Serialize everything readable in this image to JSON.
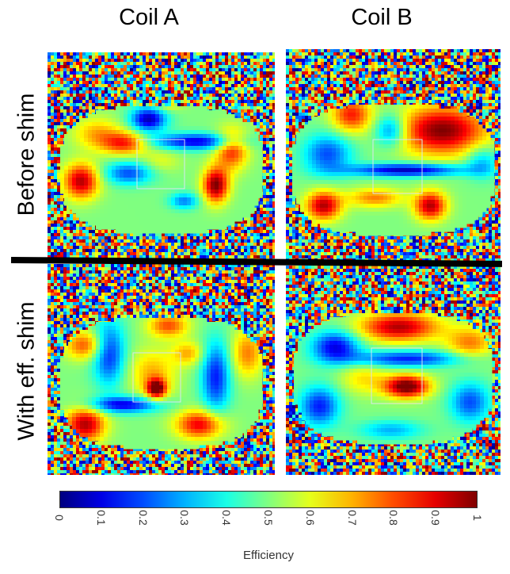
{
  "columns": [
    "Coil A",
    "Coil B"
  ],
  "rows": [
    "Before shim",
    "With eff. shim"
  ],
  "colorbar": {
    "label": "Efficiency",
    "ticks": [
      "0",
      "0.1",
      "0.2",
      "0.3",
      "0.4",
      "0.5",
      "0.6",
      "0.7",
      "0.8",
      "0.9",
      "1"
    ],
    "range": [
      0,
      1
    ],
    "colormap": "jet"
  },
  "colors": {
    "roi_box": "#d8e6f0",
    "divider": "#000000"
  }
}
